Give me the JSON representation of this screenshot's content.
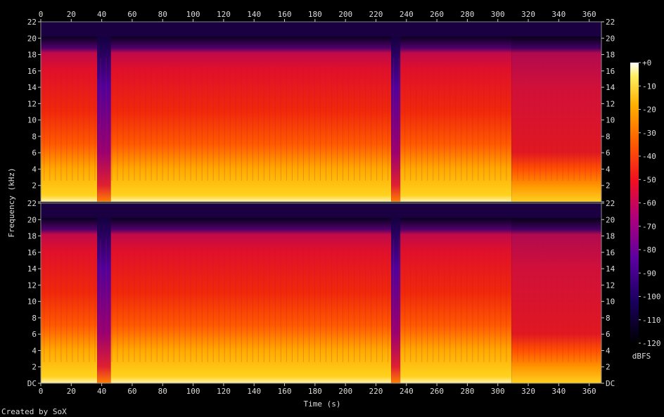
{
  "chart_data": {
    "type": "heatmap",
    "title": "",
    "xlabel": "Time (s)",
    "ylabel": "Frequency (kHz)",
    "xlim": [
      0,
      368
    ],
    "ylim": [
      0,
      22
    ],
    "x_ticks": [
      "0",
      "20",
      "40",
      "60",
      "80",
      "100",
      "120",
      "140",
      "160",
      "180",
      "200",
      "220",
      "240",
      "260",
      "280",
      "300",
      "320",
      "340",
      "360"
    ],
    "y_ticks": [
      "DC",
      "2",
      "4",
      "6",
      "8",
      "10",
      "12",
      "14",
      "16",
      "18",
      "20",
      "22"
    ],
    "y_ticks_top": [
      "",
      "2",
      "4",
      "6",
      "8",
      "10",
      "12",
      "14",
      "16",
      "18",
      "20",
      "22"
    ],
    "channels": 2,
    "colorbar": {
      "label": "dBFS",
      "ticks": [
        "+0",
        "-10",
        "-20",
        "-30",
        "-40",
        "-50",
        "-60",
        "-70",
        "-80",
        "-90",
        "-100",
        "-110",
        "-120"
      ],
      "range": [
        -120,
        0
      ]
    },
    "segments": [
      {
        "start": 0,
        "end": 37,
        "level": "loud"
      },
      {
        "start": 37,
        "end": 46,
        "level": "quiet"
      },
      {
        "start": 46,
        "end": 230,
        "level": "loud"
      },
      {
        "start": 230,
        "end": 236,
        "level": "quiet"
      },
      {
        "start": 236,
        "end": 309,
        "level": "loud"
      },
      {
        "start": 309,
        "end": 368,
        "level": "reduced"
      }
    ]
  },
  "footer": {
    "credit": "Created by SoX"
  }
}
